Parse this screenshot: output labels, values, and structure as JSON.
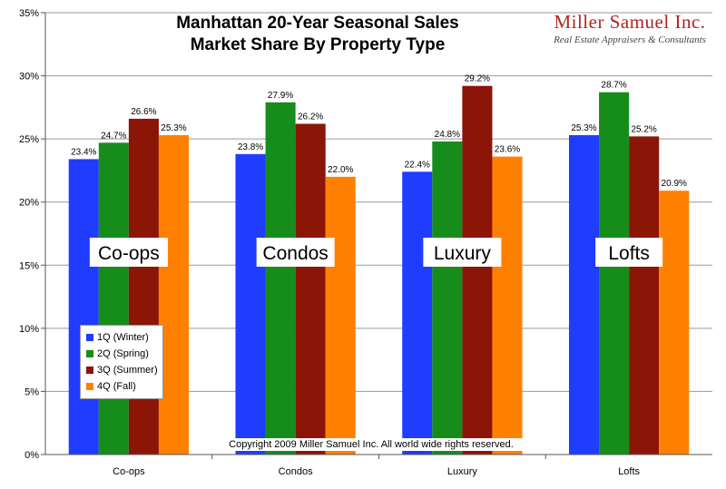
{
  "chart_data": {
    "type": "bar",
    "title": "Manhattan 20-Year Seasonal Sales",
    "subtitle": "Market Share By Property Type",
    "categories": [
      "Co-ops",
      "Condos",
      "Luxury",
      "Lofts"
    ],
    "category_overlay_labels": [
      "Co-ops",
      "Condos",
      "Luxury",
      "Lofts"
    ],
    "series": [
      {
        "name": "1Q (Winter)",
        "color": "#1f3cff",
        "values": [
          23.4,
          23.8,
          22.4,
          25.3
        ]
      },
      {
        "name": "2Q (Spring)",
        "color": "#168d1b",
        "values": [
          24.7,
          27.9,
          24.8,
          28.7
        ]
      },
      {
        "name": "3Q (Summer)",
        "color": "#8b1507",
        "values": [
          26.6,
          26.2,
          29.2,
          25.2
        ]
      },
      {
        "name": "4Q (Fall)",
        "color": "#ff8000",
        "values": [
          25.3,
          22.0,
          23.6,
          20.9
        ]
      }
    ],
    "ylim": [
      0,
      35
    ],
    "yticks": [
      0,
      5,
      10,
      15,
      20,
      25,
      30,
      35
    ],
    "ytick_labels": [
      "0%",
      "5%",
      "10%",
      "15%",
      "20%",
      "25%",
      "30%",
      "35%"
    ],
    "value_suffix": "%",
    "xlabel": "",
    "ylabel": "",
    "grid": "horizontal",
    "legend_position": "bottom-left"
  },
  "brand": {
    "name": "Miller Samuel Inc.",
    "tagline": "Real Estate Appraisers & Consultants"
  },
  "copyright": "Copyright 2009 Miller Samuel Inc.  All world wide rights reserved."
}
